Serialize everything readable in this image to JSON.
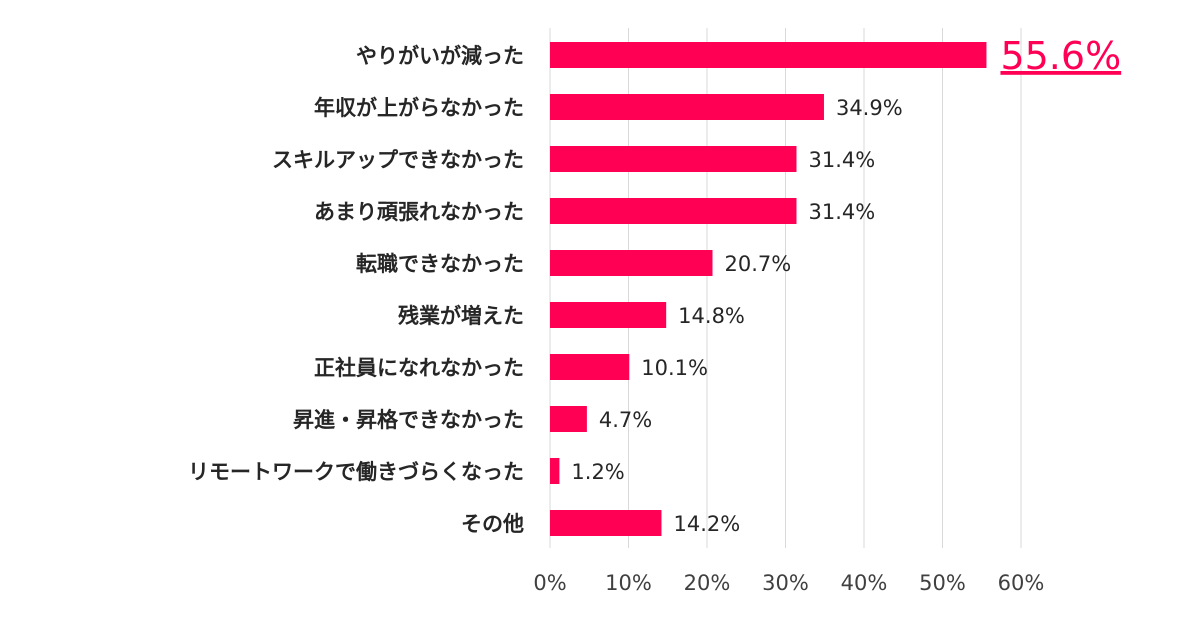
{
  "chart_data": {
    "type": "bar",
    "orientation": "horizontal",
    "title": "",
    "xlabel": "",
    "ylabel": "",
    "xlim": [
      0,
      60
    ],
    "x_ticks": [
      "0%",
      "10%",
      "20%",
      "30%",
      "40%",
      "50%",
      "60%"
    ],
    "grid": "vertical",
    "legend": "none",
    "bar_color": "#ff0055",
    "highlight_color": "#ff0055",
    "categories": [
      "やりがいが減った",
      "年収が上がらなかった",
      "スキルアップできなかった",
      "あまり頑張れなかった",
      "転職できなかった",
      "残業が増えた",
      "正社員になれなかった",
      "昇進・昇格できなかった",
      "リモートワークで働きづらくなった",
      "その他"
    ],
    "values": [
      55.6,
      34.9,
      31.4,
      31.4,
      20.7,
      14.8,
      10.1,
      4.7,
      1.2,
      14.2
    ],
    "value_labels": [
      "55.6%",
      "34.9%",
      "31.4%",
      "31.4%",
      "20.7%",
      "14.8%",
      "10.1%",
      "4.7%",
      "1.2%",
      "14.2%"
    ],
    "highlight_index": 0
  }
}
